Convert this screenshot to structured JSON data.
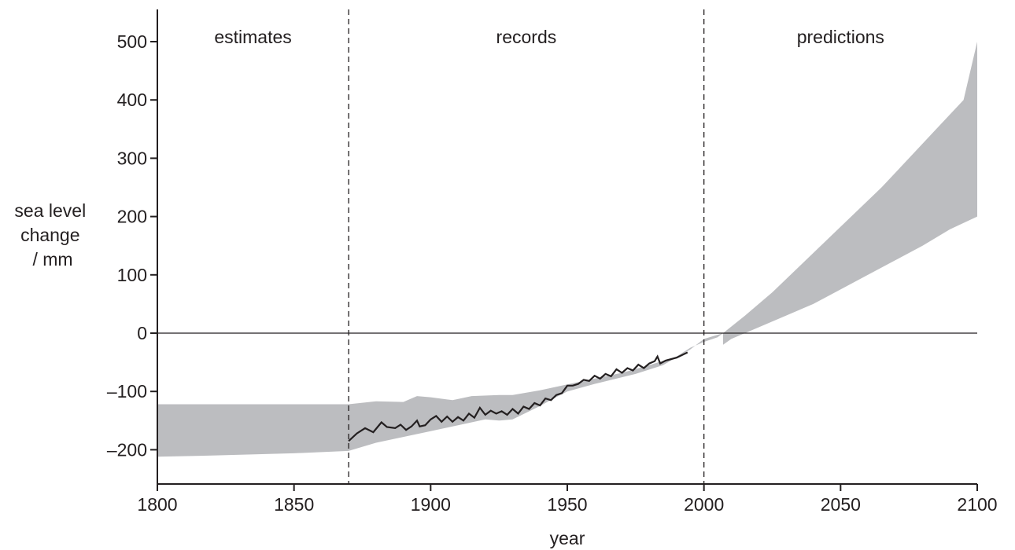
{
  "chart_data": {
    "type": "area",
    "xlabel": "year",
    "ylabel": [
      "sea level",
      "change",
      "/ mm"
    ],
    "xlim": [
      1800,
      2100
    ],
    "ylim": [
      -260,
      560
    ],
    "x_ticks": [
      1800,
      1850,
      1900,
      1950,
      2000,
      2050,
      2100
    ],
    "y_ticks": [
      500,
      400,
      300,
      200,
      100,
      0,
      -100,
      -200
    ],
    "y_tick_labels": [
      "500",
      "400",
      "300",
      "200",
      "100",
      "0",
      "–100",
      "–200"
    ],
    "zero_line": true,
    "grid": false,
    "region_dividers": [
      1870,
      2000
    ],
    "region_labels": [
      {
        "text": "estimates",
        "x": 1835
      },
      {
        "text": "records",
        "x": 1935
      },
      {
        "text": "predictions",
        "x": 2050
      }
    ],
    "colors": {
      "band": "#bcbdc0",
      "line": "#231f20",
      "axis": "#231f20"
    },
    "bands": [
      {
        "upper": [
          [
            1800,
            -122
          ],
          [
            1870,
            -122
          ],
          [
            1880,
            -117
          ],
          [
            1890,
            -118
          ],
          [
            1895,
            -108
          ],
          [
            1900,
            -110
          ],
          [
            1908,
            -115
          ],
          [
            1915,
            -108
          ],
          [
            1925,
            -106
          ],
          [
            1930,
            -106
          ],
          [
            1940,
            -98
          ],
          [
            1950,
            -88
          ],
          [
            1960,
            -78
          ],
          [
            1970,
            -68
          ],
          [
            1980,
            -55
          ],
          [
            1990,
            -40
          ],
          [
            1995,
            -25
          ],
          [
            2000,
            -15
          ],
          [
            2005,
            -7
          ],
          [
            2007,
            0
          ]
        ],
        "lower": [
          [
            2007,
            0
          ],
          [
            2000,
            -10
          ],
          [
            1995,
            -28
          ],
          [
            1985,
            -55
          ],
          [
            1975,
            -70
          ],
          [
            1960,
            -87
          ],
          [
            1950,
            -100
          ],
          [
            1945,
            -112
          ],
          [
            1940,
            -125
          ],
          [
            1930,
            -148
          ],
          [
            1925,
            -150
          ],
          [
            1920,
            -148
          ],
          [
            1910,
            -158
          ],
          [
            1900,
            -168
          ],
          [
            1890,
            -178
          ],
          [
            1880,
            -188
          ],
          [
            1870,
            -202
          ],
          [
            1850,
            -206
          ],
          [
            1820,
            -210
          ],
          [
            1800,
            -212
          ]
        ]
      },
      {
        "upper": [
          [
            2007,
            0
          ],
          [
            2015,
            30
          ],
          [
            2025,
            70
          ],
          [
            2035,
            115
          ],
          [
            2045,
            160
          ],
          [
            2055,
            205
          ],
          [
            2065,
            250
          ],
          [
            2075,
            300
          ],
          [
            2085,
            350
          ],
          [
            2095,
            400
          ],
          [
            2100,
            500
          ]
        ],
        "lower": [
          [
            2100,
            200
          ],
          [
            2090,
            178
          ],
          [
            2080,
            150
          ],
          [
            2070,
            125
          ],
          [
            2060,
            100
          ],
          [
            2050,
            75
          ],
          [
            2040,
            50
          ],
          [
            2030,
            30
          ],
          [
            2020,
            10
          ],
          [
            2010,
            -10
          ],
          [
            2007,
            -20
          ]
        ]
      }
    ],
    "series": [
      {
        "points": [
          [
            1870,
            -185
          ],
          [
            1873,
            -172
          ],
          [
            1876,
            -163
          ],
          [
            1879,
            -170
          ],
          [
            1882,
            -153
          ],
          [
            1884,
            -161
          ],
          [
            1887,
            -163
          ],
          [
            1889,
            -157
          ],
          [
            1891,
            -166
          ],
          [
            1893,
            -160
          ],
          [
            1895,
            -150
          ],
          [
            1896,
            -160
          ],
          [
            1898,
            -158
          ],
          [
            1900,
            -148
          ],
          [
            1902,
            -142
          ],
          [
            1904,
            -152
          ],
          [
            1906,
            -143
          ],
          [
            1908,
            -152
          ],
          [
            1910,
            -144
          ],
          [
            1912,
            -150
          ],
          [
            1914,
            -138
          ],
          [
            1916,
            -145
          ],
          [
            1918,
            -128
          ],
          [
            1920,
            -140
          ],
          [
            1922,
            -133
          ],
          [
            1924,
            -138
          ],
          [
            1926,
            -134
          ],
          [
            1928,
            -140
          ],
          [
            1930,
            -130
          ],
          [
            1932,
            -138
          ],
          [
            1934,
            -126
          ],
          [
            1936,
            -130
          ],
          [
            1938,
            -120
          ],
          [
            1940,
            -124
          ],
          [
            1942,
            -112
          ],
          [
            1944,
            -115
          ],
          [
            1946,
            -106
          ],
          [
            1948,
            -103
          ],
          [
            1950,
            -90
          ],
          [
            1952,
            -90
          ],
          [
            1954,
            -87
          ],
          [
            1956,
            -80
          ],
          [
            1958,
            -82
          ],
          [
            1960,
            -73
          ],
          [
            1962,
            -78
          ],
          [
            1964,
            -70
          ],
          [
            1966,
            -74
          ],
          [
            1968,
            -62
          ],
          [
            1970,
            -68
          ],
          [
            1972,
            -60
          ],
          [
            1974,
            -64
          ],
          [
            1976,
            -54
          ],
          [
            1978,
            -60
          ],
          [
            1980,
            -52
          ],
          [
            1982,
            -48
          ],
          [
            1983,
            -40
          ],
          [
            1984,
            -52
          ],
          [
            1986,
            -47
          ],
          [
            1990,
            -42
          ],
          [
            1994,
            -33
          ]
        ]
      }
    ]
  }
}
